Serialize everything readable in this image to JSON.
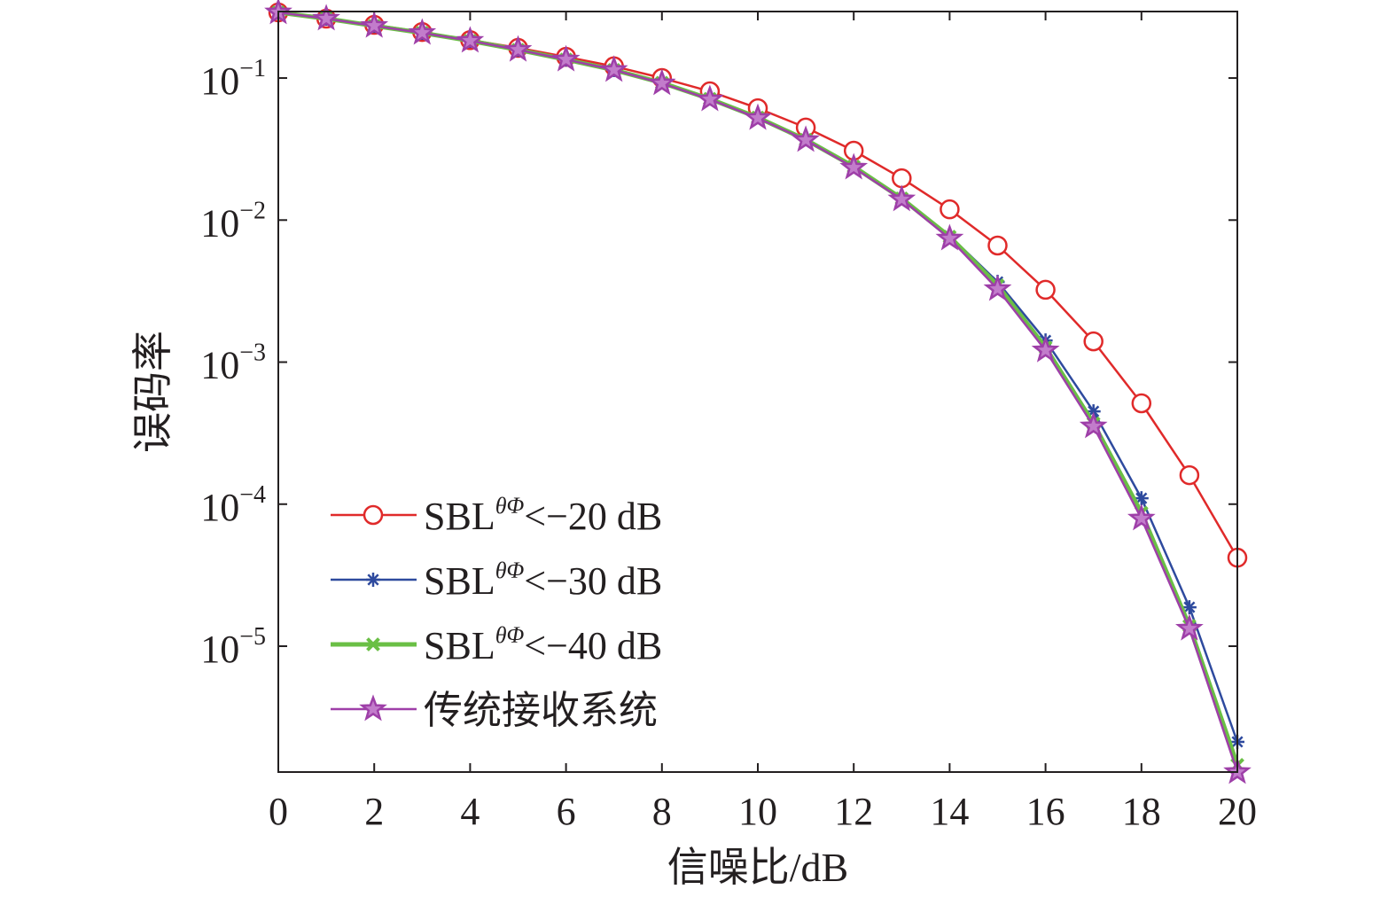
{
  "chart_data": {
    "type": "line",
    "xlabel": "信噪比/dB",
    "ylabel": "误码率",
    "xlim": [
      0,
      20
    ],
    "ylim": [
      1.3e-06,
      0.294
    ],
    "yscale": "log",
    "grid": false,
    "legend_position": "bottom-left",
    "xticks": [
      0,
      2,
      4,
      6,
      8,
      10,
      12,
      14,
      16,
      18,
      20
    ],
    "xtick_labels": [
      "0",
      "2",
      "4",
      "6",
      "8",
      "10",
      "12",
      "14",
      "16",
      "18",
      "20"
    ],
    "yticks": [
      0.1,
      0.01,
      0.001,
      0.0001,
      1e-05
    ],
    "ytick_labels": [
      {
        "base": "10",
        "exp": "−1"
      },
      {
        "base": "10",
        "exp": "−2"
      },
      {
        "base": "10",
        "exp": "−3"
      },
      {
        "base": "10",
        "exp": "−4"
      },
      {
        "base": "10",
        "exp": "−5"
      }
    ],
    "x": [
      0,
      1,
      2,
      3,
      4,
      5,
      6,
      7,
      8,
      9,
      10,
      11,
      12,
      13,
      14,
      15,
      16,
      17,
      18,
      19,
      20
    ],
    "series": [
      {
        "name": "SBLθΦ<−20 dB",
        "name_superscript": "θΦ",
        "color": "#e02a2a",
        "marker": "circle",
        "values": [
          0.29,
          0.262,
          0.237,
          0.211,
          0.185,
          0.163,
          0.141,
          0.121,
          0.1,
          0.0806,
          0.0613,
          0.0448,
          0.0308,
          0.0197,
          0.0119,
          0.00662,
          0.00323,
          0.0014,
          0.000513,
          0.00016,
          4.2e-05
        ]
      },
      {
        "name": "SBLθΦ<−30 dB",
        "name_superscript": "θΦ",
        "color": "#2e4a9e",
        "marker": "asterisk",
        "values": [
          0.29,
          0.262,
          0.233,
          0.208,
          0.183,
          0.158,
          0.135,
          0.114,
          0.093,
          0.0718,
          0.0531,
          0.0371,
          0.0241,
          0.0144,
          0.00775,
          0.00367,
          0.00142,
          0.00045,
          0.00011,
          1.88e-05,
          2.12e-06
        ]
      },
      {
        "name": "SBLθΦ<−40 dB",
        "name_superscript": "θΦ",
        "color": "#6abf45",
        "marker": "x",
        "values": [
          0.29,
          0.262,
          0.233,
          0.208,
          0.183,
          0.158,
          0.135,
          0.114,
          0.0925,
          0.0713,
          0.0527,
          0.0368,
          0.0238,
          0.0142,
          0.00764,
          0.00347,
          0.00127,
          0.00037,
          8.7e-05,
          1.39e-05,
          1.46e-06
        ]
      },
      {
        "name": "传统接收系统",
        "color": "#9e3fa8",
        "marker": "pentagram",
        "values": [
          0.29,
          0.262,
          0.233,
          0.208,
          0.183,
          0.158,
          0.135,
          0.114,
          0.0918,
          0.0708,
          0.0523,
          0.0366,
          0.0234,
          0.014,
          0.00742,
          0.00327,
          0.00121,
          0.000353,
          7.92e-05,
          1.33e-05,
          1.3e-06
        ]
      }
    ]
  }
}
